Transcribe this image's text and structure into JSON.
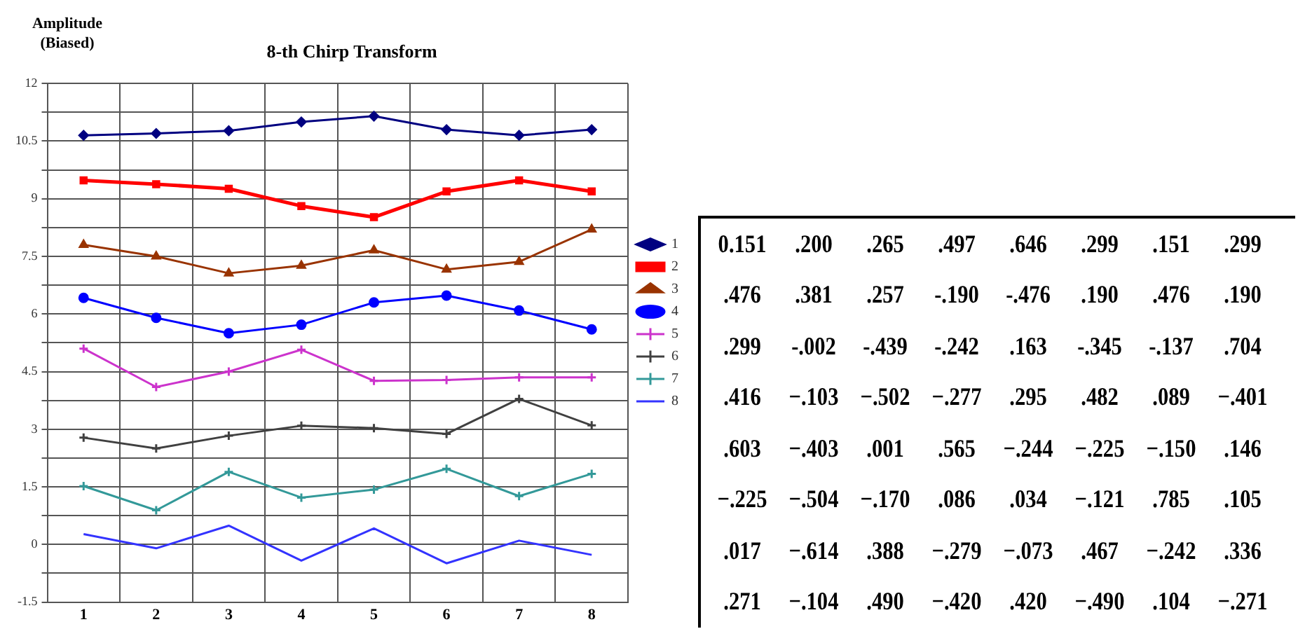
{
  "chart_data": [
    {
      "type": "line",
      "title": "8-th Chirp Transform",
      "ylabel": "Amplitude (Biased)",
      "categories": [
        "1",
        "2",
        "3",
        "4",
        "5",
        "6",
        "7",
        "8"
      ],
      "series": [
        {
          "name": "1",
          "color": "#000080",
          "marker": "diamond",
          "values": [
            10.65,
            10.7,
            10.77,
            11.0,
            11.15,
            10.8,
            10.65,
            10.8
          ]
        },
        {
          "name": "2",
          "color": "#ff0000",
          "marker": "square",
          "values": [
            9.48,
            9.38,
            9.26,
            8.81,
            8.52,
            9.19,
            9.48,
            9.19
          ]
        },
        {
          "name": "3",
          "color": "#993300",
          "marker": "triangle",
          "values": [
            7.8,
            7.5,
            7.06,
            7.26,
            7.66,
            7.16,
            7.36,
            8.2
          ]
        },
        {
          "name": "4",
          "color": "#0000ff",
          "marker": "circle",
          "values": [
            6.42,
            5.9,
            5.5,
            5.72,
            6.3,
            6.48,
            6.09,
            5.6
          ]
        },
        {
          "name": "5",
          "color": "#cc33cc",
          "marker": "cross",
          "values": [
            5.1,
            4.1,
            4.5,
            5.07,
            4.26,
            4.28,
            4.35,
            4.35
          ]
        },
        {
          "name": "6",
          "color": "#404040",
          "marker": "cross",
          "values": [
            2.78,
            2.5,
            2.83,
            3.09,
            3.03,
            2.88,
            3.79,
            3.1
          ]
        },
        {
          "name": "7",
          "color": "#339999",
          "marker": "cross",
          "values": [
            1.52,
            0.89,
            1.89,
            1.22,
            1.43,
            1.97,
            1.26,
            1.84
          ]
        },
        {
          "name": "8",
          "color": "#3333ff",
          "marker": "none",
          "values": [
            0.27,
            -0.1,
            0.49,
            -0.42,
            0.42,
            -0.49,
            0.1,
            -0.27
          ]
        }
      ],
      "ylim": [
        -1.5,
        12
      ],
      "yticks": [
        -1.5,
        {
          "value": -0.75,
          "label": null
        },
        0,
        {
          "value": 0.75,
          "label": null
        },
        1.5,
        {
          "value": 2.25,
          "label": null
        },
        3,
        {
          "value": 3.75,
          "label": null
        },
        4.5,
        {
          "value": 5.25,
          "label": null
        },
        6,
        {
          "value": 6.75,
          "label": null
        },
        7.5,
        {
          "value": 8.25,
          "label": null
        },
        9,
        {
          "value": 9.75,
          "label": null
        },
        10.5,
        {
          "value": 11.25,
          "label": null
        },
        12
      ],
      "grid": true,
      "legend": "right",
      "line_style": "solid"
    },
    {
      "type": "other",
      "annotations": [
        "0.151 .200 .265 .497 .646 .299 .151 .299",
        ".476 .381 .257 -.190 -.476 .190 .476 .190",
        ".299 -.002 -.439 -.242 .163 -.345 -.137 .704",
        ".416 −.103 −.502 −.277 .295 .482 .089 −.401",
        ".603 −.403 .001 .565 −.244 −.225 −.150 .146",
        "−.225 −.504 −.170 .086 .034 −.121 .785 .105",
        ".017 −.614 .388 −.279 −.073 .467 −.242 .336",
        ".271 −.104 .490 −.420 .420 −.490 .104 −.271"
      ]
    }
  ]
}
